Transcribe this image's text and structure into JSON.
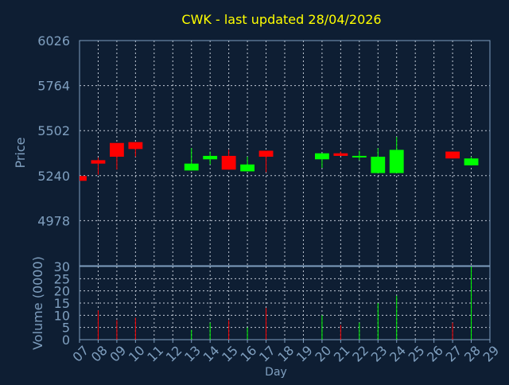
{
  "chart_data": {
    "type": "candlestick",
    "title": "CWK - last updated 28/04/2026",
    "xlabel": "Day",
    "price_panel": {
      "ylabel": "Price",
      "ylim": [
        4716,
        6026
      ],
      "yticks": [
        "6026",
        "5764",
        "5502",
        "5240",
        "4978"
      ]
    },
    "volume_panel": {
      "ylabel": "Volume (0000)",
      "ylim": [
        0,
        30
      ],
      "yticks": [
        "30",
        "25",
        "20",
        "15",
        "10",
        "5",
        "0"
      ]
    },
    "x_ticks": [
      "07",
      "08",
      "09",
      "10",
      "11",
      "12",
      "13",
      "14",
      "15",
      "16",
      "17",
      "18",
      "19",
      "20",
      "21",
      "22",
      "23",
      "24",
      "25",
      "26",
      "27",
      "28",
      "29"
    ],
    "candles": [
      {
        "day": "07",
        "open": 5238,
        "close": 5210,
        "high": 5238,
        "low": 5210,
        "volume": 0
      },
      {
        "day": "08",
        "open": 5330,
        "close": 5310,
        "high": 5345,
        "low": 5245,
        "volume": 12
      },
      {
        "day": "09",
        "open": 5430,
        "close": 5350,
        "high": 5430,
        "low": 5275,
        "volume": 8
      },
      {
        "day": "10",
        "open": 5435,
        "close": 5395,
        "high": 5435,
        "low": 5350,
        "volume": 9
      },
      {
        "day": "13",
        "open": 5270,
        "close": 5310,
        "high": 5400,
        "low": 5270,
        "volume": 4
      },
      {
        "day": "14",
        "open": 5335,
        "close": 5355,
        "high": 5380,
        "low": 5305,
        "volume": 7
      },
      {
        "day": "15",
        "open": 5355,
        "close": 5275,
        "high": 5390,
        "low": 5275,
        "volume": 8
      },
      {
        "day": "16",
        "open": 5265,
        "close": 5305,
        "high": 5350,
        "low": 5265,
        "volume": 5
      },
      {
        "day": "17",
        "open": 5385,
        "close": 5350,
        "high": 5385,
        "low": 5260,
        "volume": 13
      },
      {
        "day": "20",
        "open": 5335,
        "close": 5370,
        "high": 5370,
        "low": 5285,
        "volume": 10
      },
      {
        "day": "21",
        "open": 5370,
        "close": 5355,
        "high": 5380,
        "low": 5355,
        "volume": 6
      },
      {
        "day": "22",
        "open": 5350,
        "close": 5355,
        "high": 5385,
        "low": 5330,
        "volume": 7
      },
      {
        "day": "23",
        "open": 5255,
        "close": 5350,
        "high": 5400,
        "low": 5255,
        "volume": 15
      },
      {
        "day": "24",
        "open": 5255,
        "close": 5390,
        "high": 5465,
        "low": 5255,
        "volume": 18
      },
      {
        "day": "27",
        "open": 5380,
        "close": 5340,
        "high": 5380,
        "low": 5340,
        "volume": 7
      },
      {
        "day": "28",
        "open": 5300,
        "close": 5340,
        "high": 5350,
        "low": 5300,
        "volume": 30
      }
    ],
    "colors": {
      "background": "#0e1e33",
      "axis_text": "#7f9fbf",
      "title": "#ffff00",
      "grid": "#c0c8d4",
      "up": "#00ff00",
      "down": "#ff0000",
      "axis_line": "#7f9fbf"
    },
    "grid": true
  }
}
